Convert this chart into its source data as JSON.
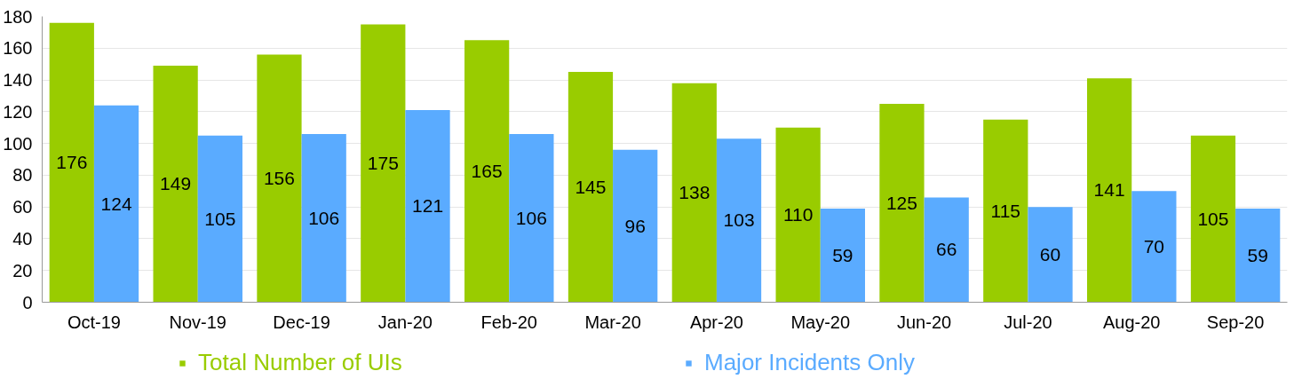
{
  "chart_data": {
    "type": "bar",
    "categories": [
      "Oct-19",
      "Nov-19",
      "Dec-19",
      "Jan-20",
      "Feb-20",
      "Mar-20",
      "Apr-20",
      "May-20",
      "Jun-20",
      "Jul-20",
      "Aug-20",
      "Sep-20"
    ],
    "series": [
      {
        "name": "Total Number of UIs",
        "color": "#99cc00",
        "values": [
          176,
          149,
          156,
          175,
          165,
          145,
          138,
          110,
          125,
          115,
          141,
          105
        ]
      },
      {
        "name": "Major Incidents Only",
        "color": "#5aabff",
        "values": [
          124,
          105,
          106,
          121,
          106,
          96,
          103,
          59,
          66,
          60,
          70,
          59
        ]
      }
    ],
    "ylim": [
      0,
      180
    ],
    "yticks": [
      0,
      20,
      40,
      60,
      80,
      100,
      120,
      140,
      160,
      180
    ],
    "grid": "y",
    "legend": "bottom",
    "data_labels": true
  }
}
